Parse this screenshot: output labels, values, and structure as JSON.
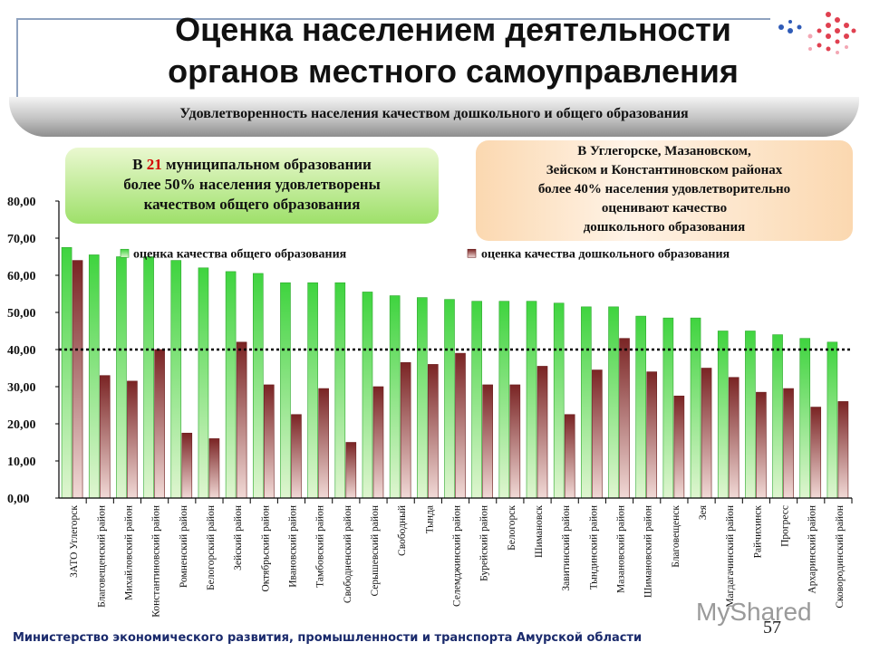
{
  "slide": {
    "title_line1": "Оценка населением деятельности",
    "title_line2": "органов местного самоуправления",
    "banner": "Удовлетворенность населения качеством дошкольного и  общего образования",
    "green_box_prefix": "В ",
    "green_box_number": "21",
    "green_box_line1_rest": " муниципальном образовании",
    "green_box_line2": "более 50% населения удовлетворены",
    "green_box_line3": "качеством общего образования",
    "orange_box_lines": [
      "В Углегорске, Мазановском,",
      "Зейском и Константиновском районах",
      "более 40% населения удовлетворительно",
      "оценивают качество",
      "дошкольного образования"
    ],
    "footer": "Министерство экономического развития, промышленности и транспорта Амурской области",
    "page_number": "57",
    "watermark": "MyShared"
  },
  "chart_data": {
    "type": "bar",
    "categories": [
      "ЗАТО Углегорск",
      "Благовещенский район",
      "Михайловский район",
      "Константиновский район",
      "Ромненский район",
      "Белогорский район",
      "Зейский район",
      "Октябрьский район",
      "Ивановский район",
      "Тамбовский район",
      "Свободненский район",
      "Серышевский район",
      "Свободный",
      "Тында",
      "Селемджинский район",
      "Бурейский район",
      "Белогорск",
      "Шимановск",
      "Завитинский район",
      "Тындинский район",
      "Мазановский район",
      "Шимановский район",
      "Благовещенск",
      "Зея",
      "Магдагачинский район",
      "Райчихинск",
      "Прогресс",
      "Архаринский район",
      "Сковородинский район"
    ],
    "series": [
      {
        "name": "оценка качества общего образования",
        "color": "#38c838",
        "values": [
          67.5,
          65.5,
          65.0,
          65.0,
          64.0,
          62.0,
          61.0,
          60.5,
          58.0,
          58.0,
          58.0,
          55.5,
          54.5,
          54.0,
          53.5,
          53.0,
          53.0,
          53.0,
          52.5,
          51.5,
          51.5,
          49.0,
          48.5,
          48.5,
          45.0,
          45.0,
          44.0,
          43.0,
          42.0
        ]
      },
      {
        "name": "оценка качества дошкольного образования",
        "color": "#8a2d2d",
        "values": [
          64.0,
          33.0,
          31.5,
          40.0,
          17.5,
          16.0,
          42.0,
          30.5,
          22.5,
          29.5,
          15.0,
          30.0,
          36.5,
          36.0,
          39.0,
          30.5,
          30.5,
          35.5,
          22.5,
          34.5,
          43.0,
          34.0,
          27.5,
          35.0,
          32.5,
          28.5,
          29.5,
          24.5,
          26.0
        ]
      }
    ],
    "ytick_labels": [
      "0,00",
      "10,00",
      "20,00",
      "30,00",
      "40,00",
      "50,00",
      "60,00",
      "70,00",
      "80,00"
    ],
    "ylim": [
      0,
      80
    ],
    "threshold": 40,
    "legend": "top"
  }
}
